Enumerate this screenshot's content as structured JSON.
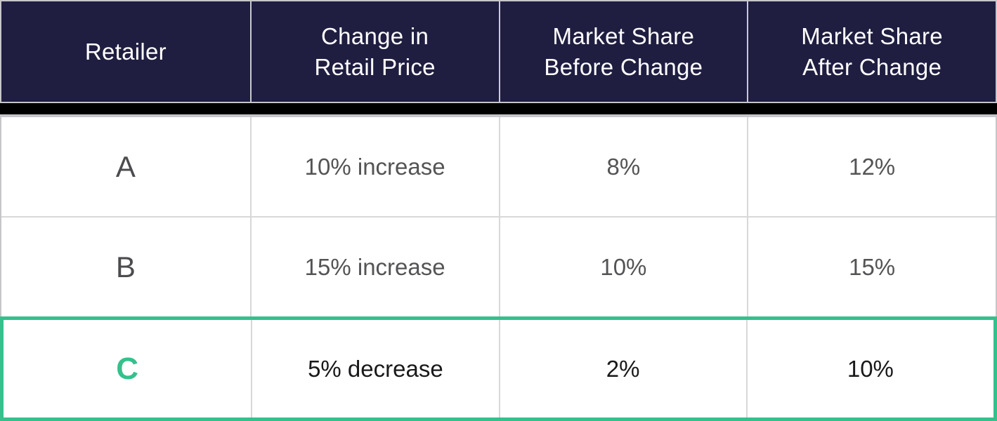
{
  "table": {
    "columns": [
      {
        "label": "Retailer"
      },
      {
        "label": "Change in\nRetail Price"
      },
      {
        "label": "Market Share\nBefore Change"
      },
      {
        "label": "Market Share\nAfter Change"
      }
    ],
    "rows": [
      {
        "retailer": "A",
        "change": "10% increase",
        "share_before": "8%",
        "share_after": "12%",
        "highlighted": false
      },
      {
        "retailer": "B",
        "change": "15% increase",
        "share_before": "10%",
        "share_after": "15%",
        "highlighted": false
      },
      {
        "retailer": "C",
        "change": "5% decrease",
        "share_before": "2%",
        "share_after": "10%",
        "highlighted": true
      }
    ]
  },
  "chart_data": {
    "type": "table",
    "title": "",
    "columns": [
      "Retailer",
      "Change in Retail Price",
      "Market Share Before Change",
      "Market Share After Change"
    ],
    "rows": [
      [
        "A",
        "10% increase",
        "8%",
        "12%"
      ],
      [
        "B",
        "15% increase",
        "10%",
        "15%"
      ],
      [
        "C",
        "5% decrease",
        "2%",
        "10%"
      ]
    ],
    "highlighted_row": "C"
  },
  "colors": {
    "header_bg": "#1f1e41",
    "header_text": "#ffffff",
    "separator_band": "#000000",
    "outer_border": "#c6c6ca",
    "inner_divider": "#d8d8d8",
    "body_text": "#545456",
    "highlight_accent": "#35c08c",
    "highlight_text": "#19191b",
    "body_bg": "#ffffff"
  }
}
